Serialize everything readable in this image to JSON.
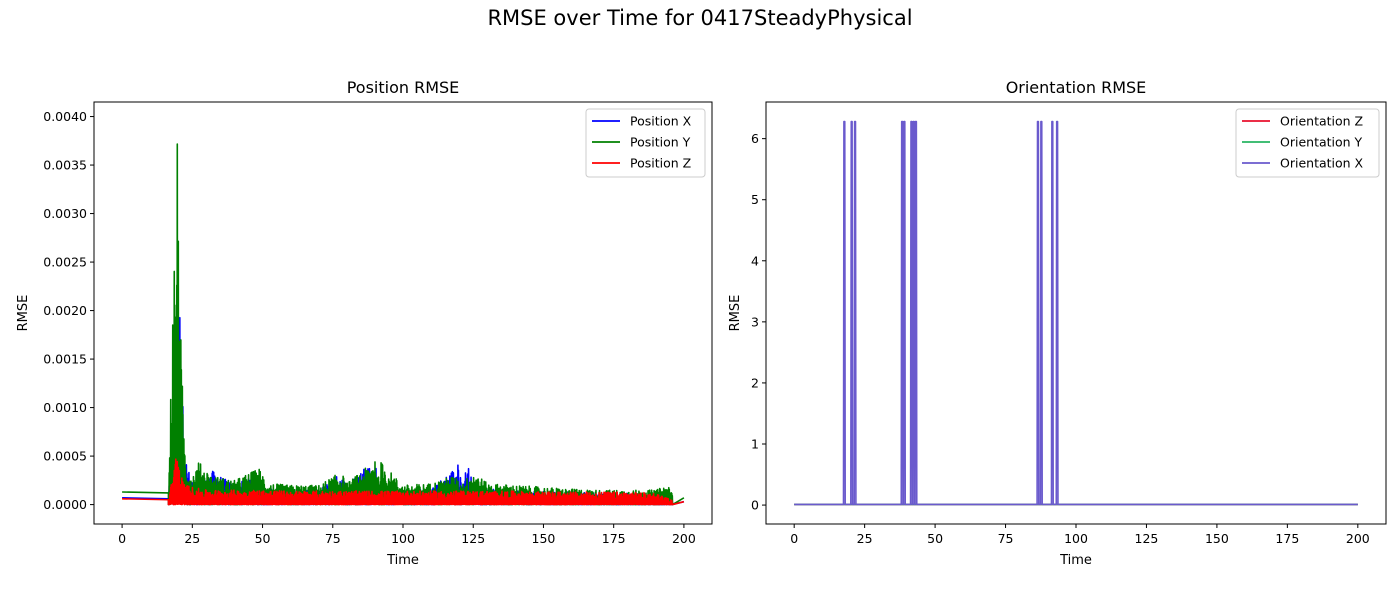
{
  "figure": {
    "title": "RMSE over Time for 0417SteadyPhysical"
  },
  "chart_data": [
    {
      "type": "line",
      "title": "Position RMSE",
      "xlabel": "Time",
      "ylabel": "RMSE",
      "xlim": [
        -10,
        210
      ],
      "ylim": [
        -0.0002,
        0.00415
      ],
      "xticks": [
        0,
        25,
        50,
        75,
        100,
        125,
        150,
        175,
        200
      ],
      "xtick_labels": [
        "0",
        "25",
        "50",
        "75",
        "100",
        "125",
        "150",
        "175",
        "200"
      ],
      "yticks": [
        0,
        0.0005,
        0.001,
        0.0015,
        0.002,
        0.0025,
        0.003,
        0.0035,
        0.004
      ],
      "ytick_labels": [
        "0.0000",
        "0.0005",
        "0.0010",
        "0.0015",
        "0.0020",
        "0.0025",
        "0.0030",
        "0.0035",
        "0.0040"
      ],
      "grid": false,
      "legend_position": "upper right",
      "series": [
        {
          "name": "Position X",
          "color": "#0000ff",
          "x": [
            0,
            16.5,
            18,
            19,
            20,
            20.5,
            21,
            21.5,
            22,
            23,
            25,
            28,
            32,
            40,
            47,
            50,
            55,
            60,
            70,
            78,
            80,
            88,
            89,
            90,
            92,
            100,
            110,
            120,
            121,
            123,
            125,
            130,
            140,
            150,
            160,
            170,
            180,
            190,
            196,
            200
          ],
          "y": [
            7e-05,
            6e-05,
            0.0008,
            0.0012,
            0.0017,
            0.0022,
            0.0016,
            0.0011,
            0.0009,
            0.0004,
            0.00025,
            0.0002,
            0.00035,
            0.0002,
            0.0003,
            0.00018,
            0.00015,
            0.00016,
            0.00015,
            0.00033,
            0.00018,
            0.00046,
            0.0002,
            0.00045,
            0.00018,
            0.00015,
            0.00016,
            0.00043,
            0.0002,
            0.00043,
            0.0002,
            0.00016,
            0.00015,
            0.00014,
            0.00013,
            0.00012,
            0.00012,
            0.00011,
            4e-05,
            3e-05
          ]
        },
        {
          "name": "Position Y",
          "color": "#008000",
          "x": [
            0,
            16.5,
            17.5,
            18.5,
            19,
            19.5,
            20,
            20.5,
            21,
            22,
            23,
            25,
            27,
            32,
            40,
            49,
            52,
            60,
            70,
            78,
            80,
            89,
            90,
            91,
            92,
            100,
            110,
            118,
            121,
            125,
            130,
            140,
            150,
            160,
            170,
            180,
            190,
            195,
            196,
            200
          ],
          "y": [
            0.00013,
            0.00012,
            0.0014,
            0.0027,
            0.0021,
            0.00396,
            0.0033,
            0.0024,
            0.0016,
            0.0008,
            0.0004,
            0.0003,
            0.00045,
            0.0003,
            0.00025,
            0.00038,
            0.00022,
            0.0002,
            0.0002,
            0.00034,
            0.00022,
            0.00043,
            0.0006,
            0.00022,
            0.00045,
            0.0002,
            0.00022,
            0.0003,
            0.00022,
            0.00035,
            0.00022,
            0.0002,
            0.00018,
            0.00016,
            0.00015,
            0.00015,
            0.00015,
            0.00021,
            8e-05,
            7e-05
          ]
        },
        {
          "name": "Position Z",
          "color": "#ff0000",
          "x": [
            0,
            16.5,
            18,
            19,
            19.5,
            20,
            21,
            22,
            25,
            30,
            40,
            50,
            60,
            70,
            80,
            90,
            100,
            110,
            120,
            130,
            140,
            150,
            160,
            170,
            180,
            190,
            196,
            200
          ],
          "y": [
            6e-05,
            5e-05,
            0.0003,
            0.00055,
            0.0006,
            0.00045,
            0.0003,
            0.00022,
            0.00018,
            0.00015,
            0.00015,
            0.00015,
            0.00014,
            0.00014,
            0.00014,
            0.00014,
            0.00014,
            0.00014,
            0.00014,
            0.00014,
            0.00014,
            0.00013,
            0.00013,
            0.00013,
            0.00013,
            0.00012,
            4e-05,
            3e-05
          ]
        }
      ],
      "noise_band": {
        "x_start": 16.5,
        "x_end": 196,
        "floor": 0.0
      }
    },
    {
      "type": "line",
      "title": "Orientation RMSE",
      "xlabel": "Time",
      "ylabel": "RMSE",
      "xlim": [
        -10,
        210
      ],
      "ylim": [
        -0.31,
        6.6
      ],
      "xticks": [
        0,
        25,
        50,
        75,
        100,
        125,
        150,
        175,
        200
      ],
      "xtick_labels": [
        "0",
        "25",
        "50",
        "75",
        "100",
        "125",
        "150",
        "175",
        "200"
      ],
      "yticks": [
        0,
        1,
        2,
        3,
        4,
        5,
        6
      ],
      "ytick_labels": [
        "0",
        "1",
        "2",
        "3",
        "4",
        "5",
        "6"
      ],
      "grid": false,
      "legend_position": "upper right",
      "series": [
        {
          "name": "Orientation Z",
          "color": "#e8112d",
          "x": [
            0,
            200
          ],
          "y": [
            0.01,
            0.01
          ]
        },
        {
          "name": "Orientation Y",
          "color": "#28b463",
          "x": [
            0,
            200
          ],
          "y": [
            0.01,
            0.01
          ]
        },
        {
          "name": "Orientation X",
          "color": "#6a5acd",
          "spikes": [
            17.8,
            20.4,
            21.6,
            38.3,
            39.1,
            41.6,
            42.4,
            43.2,
            86.5,
            87.7,
            91.6,
            93.3
          ],
          "spike_height": 6.28,
          "x_range": [
            0,
            200
          ],
          "baseline": 0.01
        }
      ]
    }
  ]
}
